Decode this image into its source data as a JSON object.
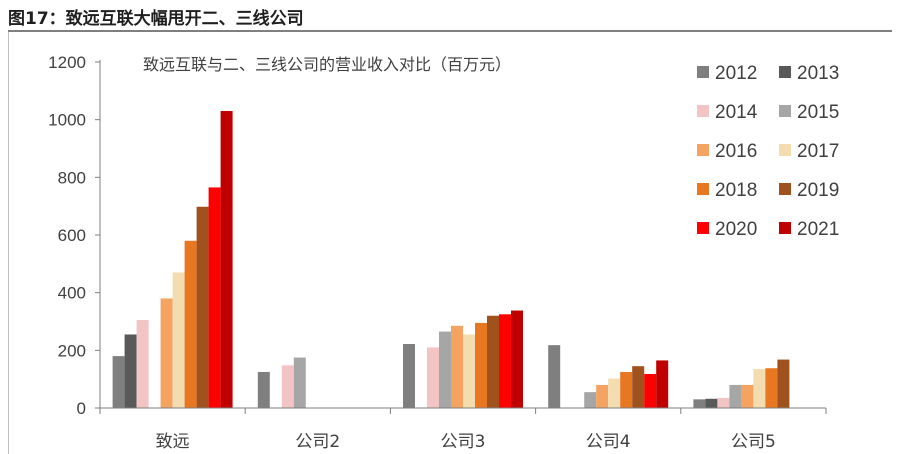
{
  "figure": {
    "title": "图17：致远互联大幅甩开二、三线公司"
  },
  "chart_data": {
    "type": "bar",
    "title": "致远互联与二、三线公司的营业收入对比（百万元）",
    "xlabel": "",
    "ylabel": "",
    "categories": [
      "致远",
      "公司2",
      "公司3",
      "公司4",
      "公司5"
    ],
    "ylim": [
      0,
      1200
    ],
    "yticks": [
      0,
      200,
      400,
      600,
      800,
      1000,
      1200
    ],
    "grid": false,
    "legend_position": "top-right",
    "series": [
      {
        "name": "2012",
        "color": "#7f7f7f",
        "values": [
          180,
          125,
          222,
          218,
          30
        ]
      },
      {
        "name": "2013",
        "color": "#595959",
        "values": [
          255,
          null,
          null,
          null,
          32
        ]
      },
      {
        "name": "2014",
        "color": "#f2c4c4",
        "values": [
          305,
          148,
          210,
          null,
          35
        ]
      },
      {
        "name": "2015",
        "color": "#a6a6a6",
        "values": [
          null,
          175,
          265,
          55,
          80
        ]
      },
      {
        "name": "2016",
        "color": "#f4a460",
        "values": [
          380,
          null,
          285,
          80,
          80
        ]
      },
      {
        "name": "2017",
        "color": "#f2dcb0",
        "values": [
          470,
          null,
          255,
          102,
          135
        ]
      },
      {
        "name": "2018",
        "color": "#e87722",
        "values": [
          580,
          null,
          295,
          125,
          138
        ]
      },
      {
        "name": "2019",
        "color": "#a0521e",
        "values": [
          698,
          null,
          320,
          145,
          168
        ]
      },
      {
        "name": "2020",
        "color": "#ff0000",
        "values": [
          765,
          null,
          325,
          118,
          null
        ]
      },
      {
        "name": "2021",
        "color": "#c00000",
        "values": [
          1030,
          null,
          338,
          165,
          null
        ]
      }
    ]
  }
}
